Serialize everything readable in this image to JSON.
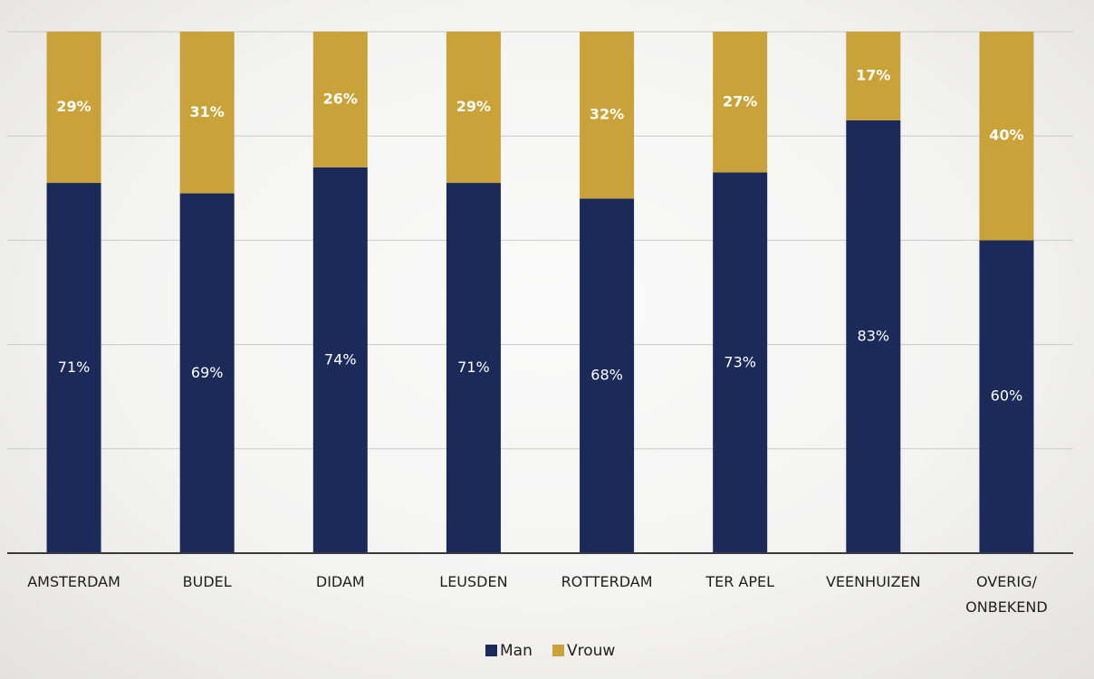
{
  "chart_data": {
    "type": "bar",
    "stacked": true,
    "percent": true,
    "categories": [
      "AMSTERDAM",
      "BUDEL",
      "DIDAM",
      "LEUSDEN",
      "ROTTERDAM",
      "TER APEL",
      "VEENHUIZEN",
      "OVERIG/\nONBEKEND"
    ],
    "series": [
      {
        "name": "Man",
        "color": "#1b2a58",
        "values": [
          71,
          69,
          74,
          71,
          68,
          73,
          83,
          60
        ]
      },
      {
        "name": "Vrouw",
        "color": "#c9a33a",
        "values": [
          29,
          31,
          26,
          29,
          32,
          27,
          17,
          40
        ]
      }
    ],
    "data_labels": {
      "Man": [
        "71%",
        "69%",
        "74%",
        "71%",
        "68%",
        "73%",
        "83%",
        "60%"
      ],
      "Vrouw": [
        "29%",
        "31%",
        "26%",
        "29%",
        "32%",
        "27%",
        "17%",
        "40%"
      ]
    },
    "ylim": [
      0,
      100
    ],
    "grid": true,
    "legend": "bottom-center"
  }
}
